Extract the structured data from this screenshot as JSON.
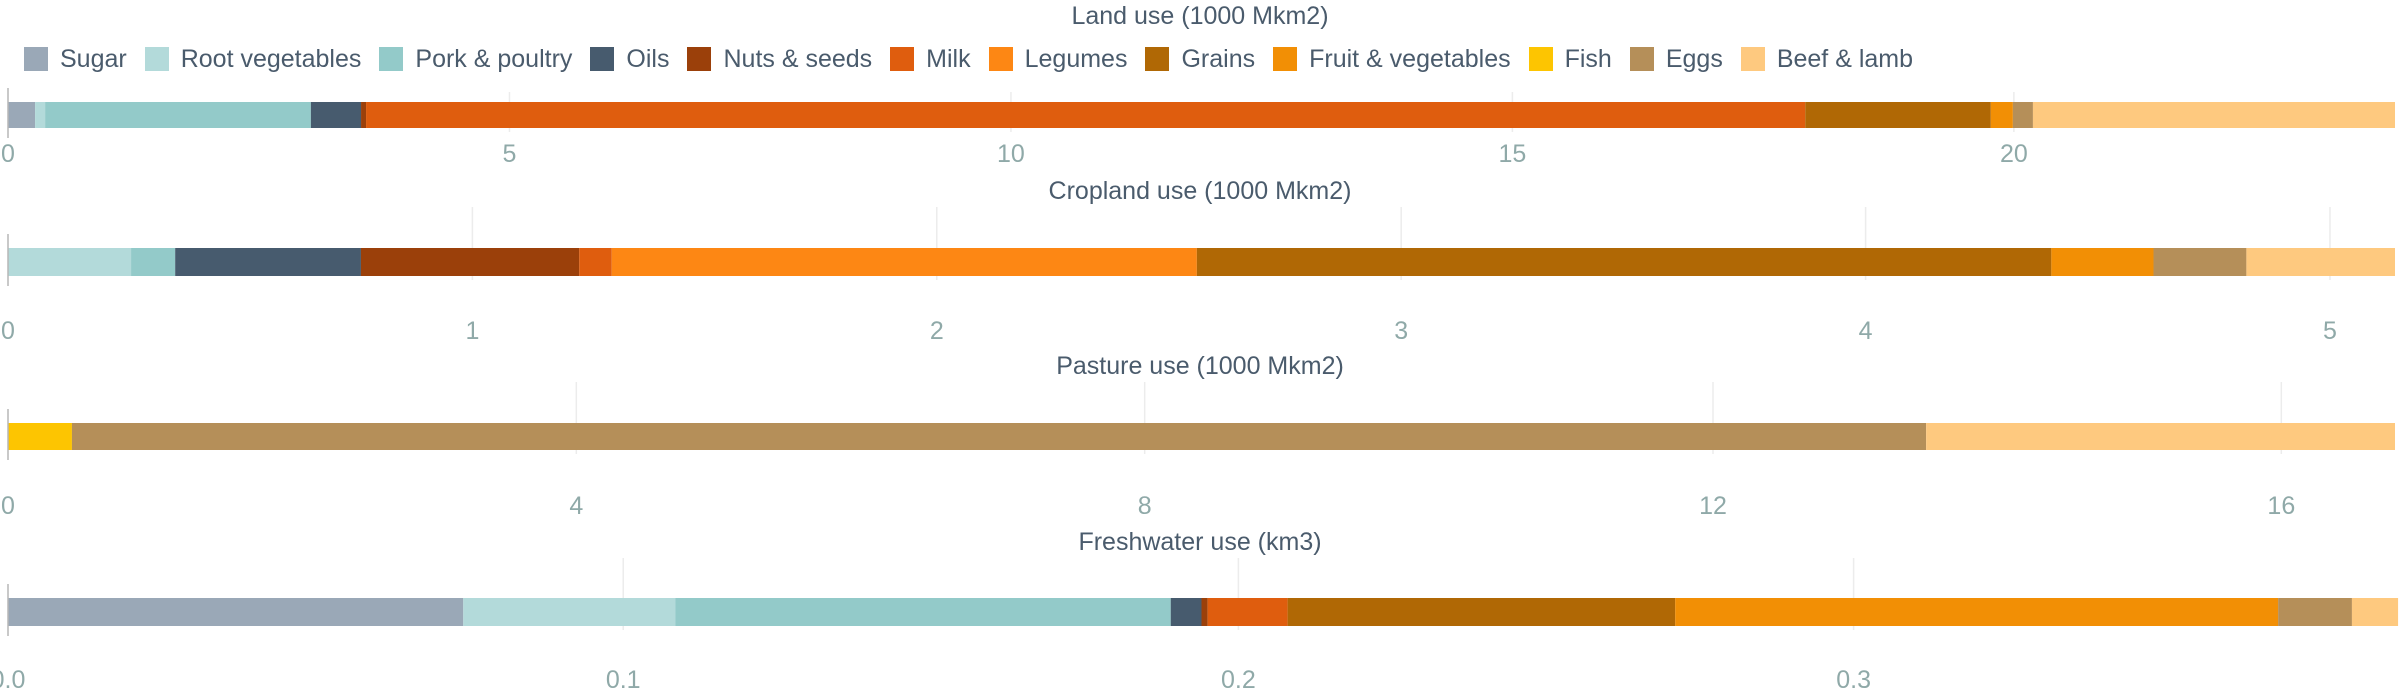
{
  "legend_items": [
    {
      "label": "Sugar",
      "color": "#9aa8b7"
    },
    {
      "label": "Root vegetables",
      "color": "#b3dada"
    },
    {
      "label": "Pork & poultry",
      "color": "#93cac9"
    },
    {
      "label": "Oils",
      "color": "#475b6e"
    },
    {
      "label": "Nuts & seeds",
      "color": "#9b400a"
    },
    {
      "label": "Milk",
      "color": "#df5d0e"
    },
    {
      "label": "Legumes",
      "color": "#fd8714"
    },
    {
      "label": "Grains",
      "color": "#b06805"
    },
    {
      "label": "Fruit & vegetables",
      "color": "#f28f05"
    },
    {
      "label": "Fish",
      "color": "#fdc501"
    },
    {
      "label": "Eggs",
      "color": "#b58f59"
    },
    {
      "label": "Beef & lamb",
      "color": "#fec97f"
    }
  ],
  "chart_data": [
    {
      "type": "bar",
      "orientation": "horizontal",
      "stacked": true,
      "title": "Land use (1000 Mkm2)",
      "xlim": [
        0,
        23.8
      ],
      "ticks": [
        {
          "value": 0,
          "label": "0"
        },
        {
          "value": 5,
          "label": "5"
        },
        {
          "value": 10,
          "label": "10"
        },
        {
          "value": 15,
          "label": "15"
        },
        {
          "value": 20,
          "label": "20"
        }
      ],
      "segments": [
        {
          "category": "Sugar",
          "value": 0.27
        },
        {
          "category": "Root vegetables",
          "value": 0.1
        },
        {
          "category": "Pork & poultry",
          "value": 2.65
        },
        {
          "category": "Oils",
          "value": 0.5
        },
        {
          "category": "Nuts & seeds",
          "value": 0.05
        },
        {
          "category": "Milk",
          "value": 14.35
        },
        {
          "category": "Grains",
          "value": 1.85
        },
        {
          "category": "Fruit & vegetables",
          "value": 0.22
        },
        {
          "category": "Eggs",
          "value": 0.2
        },
        {
          "category": "Beef & lamb",
          "value": 3.61
        }
      ]
    },
    {
      "type": "bar",
      "orientation": "horizontal",
      "stacked": true,
      "title": "Cropland use (1000 Mkm2)",
      "xlim": [
        0,
        5.14
      ],
      "ticks": [
        {
          "value": 0,
          "label": "0"
        },
        {
          "value": 1,
          "label": "1"
        },
        {
          "value": 2,
          "label": "2"
        },
        {
          "value": 3,
          "label": "3"
        },
        {
          "value": 4,
          "label": "4"
        },
        {
          "value": 5,
          "label": "5"
        }
      ],
      "segments": [
        {
          "category": "Root vegetables",
          "value": 0.265
        },
        {
          "category": "Pork & poultry",
          "value": 0.095
        },
        {
          "category": "Oils",
          "value": 0.4
        },
        {
          "category": "Nuts & seeds",
          "value": 0.47
        },
        {
          "category": "Milk",
          "value": 0.07
        },
        {
          "category": "Legumes",
          "value": 1.26
        },
        {
          "category": "Grains",
          "value": 1.84
        },
        {
          "category": "Fruit & vegetables",
          "value": 0.22
        },
        {
          "category": "Eggs",
          "value": 0.2
        },
        {
          "category": "Beef & lamb",
          "value": 0.32
        }
      ]
    },
    {
      "type": "bar",
      "orientation": "horizontal",
      "stacked": true,
      "title": "Pasture use (1000 Mkm2)",
      "xlim": [
        0,
        16.8
      ],
      "ticks": [
        {
          "value": 0,
          "label": "0"
        },
        {
          "value": 4,
          "label": "4"
        },
        {
          "value": 8,
          "label": "8"
        },
        {
          "value": 12,
          "label": "12"
        },
        {
          "value": 16,
          "label": "16"
        }
      ],
      "segments": [
        {
          "category": "Fish",
          "value": 0.45
        },
        {
          "category": "Eggs",
          "value": 13.05
        },
        {
          "category": "Beef & lamb",
          "value": 3.3
        }
      ]
    },
    {
      "type": "bar",
      "orientation": "horizontal",
      "stacked": true,
      "title": "Freshwater use (km3)",
      "xlim": [
        0,
        0.388
      ],
      "ticks": [
        {
          "value": 0,
          "label": "0.0"
        },
        {
          "value": 0.1,
          "label": "0.1"
        },
        {
          "value": 0.2,
          "label": "0.2"
        },
        {
          "value": 0.3,
          "label": "0.3"
        }
      ],
      "segments": [
        {
          "category": "Sugar",
          "value": 0.074
        },
        {
          "category": "Root vegetables",
          "value": 0.0345
        },
        {
          "category": "Pork & poultry",
          "value": 0.0805
        },
        {
          "category": "Oils",
          "value": 0.005
        },
        {
          "category": "Nuts & seeds",
          "value": 0.001
        },
        {
          "category": "Milk",
          "value": 0.013
        },
        {
          "category": "Grains",
          "value": 0.063
        },
        {
          "category": "Fruit & vegetables",
          "value": 0.098
        },
        {
          "category": "Eggs",
          "value": 0.012
        },
        {
          "category": "Beef & lamb",
          "value": 0.0075
        }
      ]
    }
  ]
}
